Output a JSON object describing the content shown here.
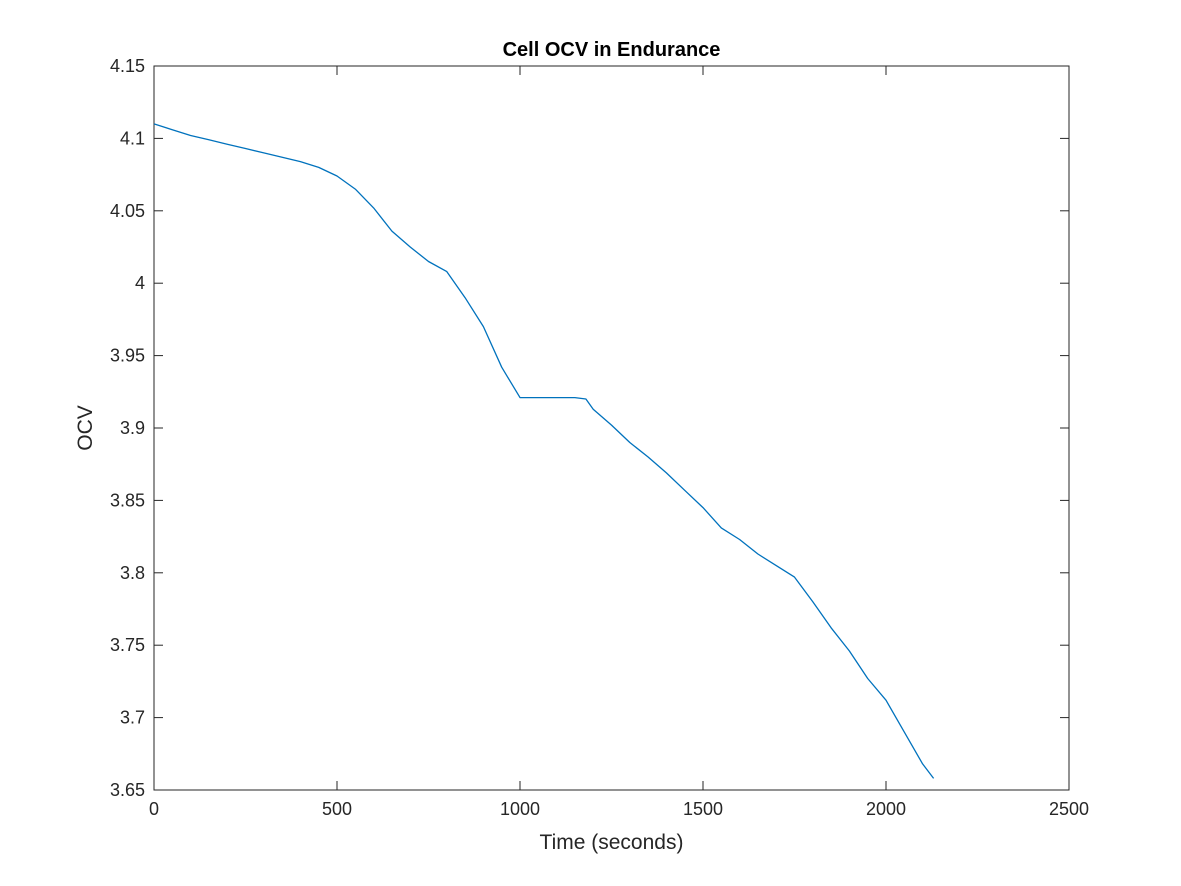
{
  "chart_data": {
    "type": "line",
    "title": "Cell OCV in Endurance",
    "xlabel": "Time (seconds)",
    "ylabel": "OCV",
    "xlim": [
      0,
      2500
    ],
    "ylim": [
      3.65,
      4.15
    ],
    "xticks": [
      0,
      500,
      1000,
      1500,
      2000,
      2500
    ],
    "xtick_labels": [
      "0",
      "500",
      "1000",
      "1500",
      "2000",
      "2500"
    ],
    "yticks": [
      3.65,
      3.7,
      3.75,
      3.8,
      3.85,
      3.9,
      3.95,
      4.0,
      4.05,
      4.1,
      4.15
    ],
    "ytick_labels": [
      "3.65",
      "3.7",
      "3.75",
      "3.8",
      "3.85",
      "3.9",
      "3.95",
      "4",
      "4.05",
      "4.1",
      "4.15"
    ],
    "grid": false,
    "box": true,
    "line_color": "#0072BD",
    "axes_color": "#262626",
    "series": [
      {
        "x": [
          0,
          50,
          100,
          150,
          200,
          250,
          300,
          350,
          400,
          450,
          500,
          550,
          600,
          650,
          700,
          750,
          800,
          850,
          900,
          950,
          1000,
          1050,
          1100,
          1150,
          1180,
          1200,
          1250,
          1300,
          1350,
          1400,
          1450,
          1500,
          1550,
          1600,
          1650,
          1700,
          1750,
          1800,
          1850,
          1900,
          1950,
          2000,
          2050,
          2100,
          2130
        ],
        "y": [
          4.11,
          4.106,
          4.102,
          4.099,
          4.096,
          4.093,
          4.09,
          4.087,
          4.084,
          4.08,
          4.074,
          4.065,
          4.052,
          4.036,
          4.025,
          4.015,
          4.008,
          3.99,
          3.97,
          3.942,
          3.921,
          3.921,
          3.921,
          3.921,
          3.92,
          3.913,
          3.902,
          3.89,
          3.88,
          3.869,
          3.857,
          3.845,
          3.831,
          3.823,
          3.813,
          3.805,
          3.797,
          3.78,
          3.762,
          3.746,
          3.727,
          3.712,
          3.69,
          3.668,
          3.658
        ]
      }
    ]
  }
}
